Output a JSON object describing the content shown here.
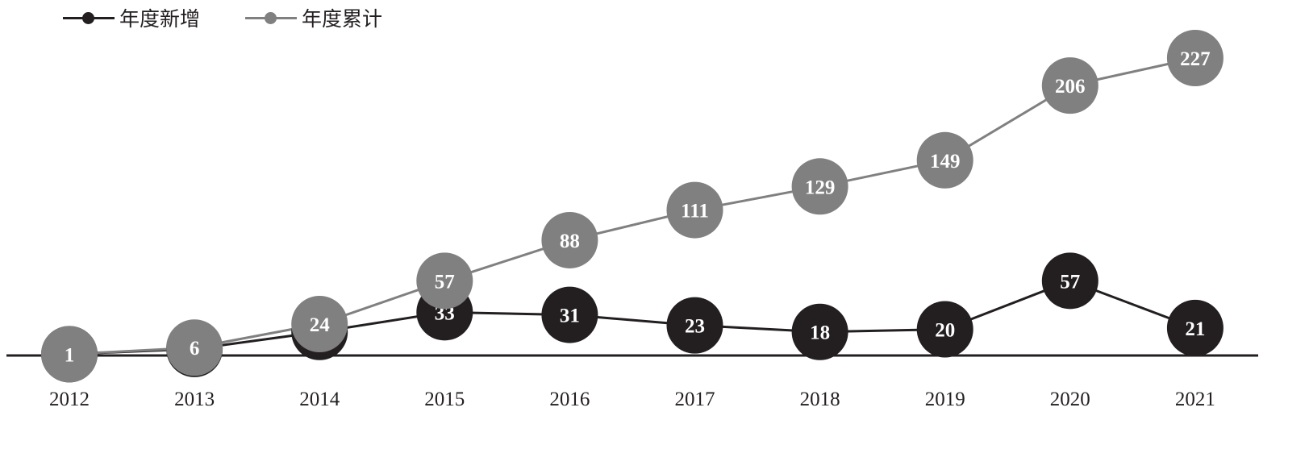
{
  "chart_data": {
    "type": "line",
    "categories": [
      "2012",
      "2013",
      "2014",
      "2015",
      "2016",
      "2017",
      "2018",
      "2019",
      "2020",
      "2021"
    ],
    "series": [
      {
        "name": "年度新增",
        "color": "#231f20",
        "values": [
          1,
          5,
          18,
          33,
          31,
          23,
          18,
          20,
          57,
          21
        ]
      },
      {
        "name": "年度累计",
        "color": "#808080",
        "values": [
          1,
          6,
          24,
          57,
          88,
          111,
          129,
          149,
          206,
          227
        ]
      }
    ],
    "legend_position": "top-left",
    "grid": false,
    "axis_color": "#231f20",
    "label_color": "#ffffff"
  }
}
